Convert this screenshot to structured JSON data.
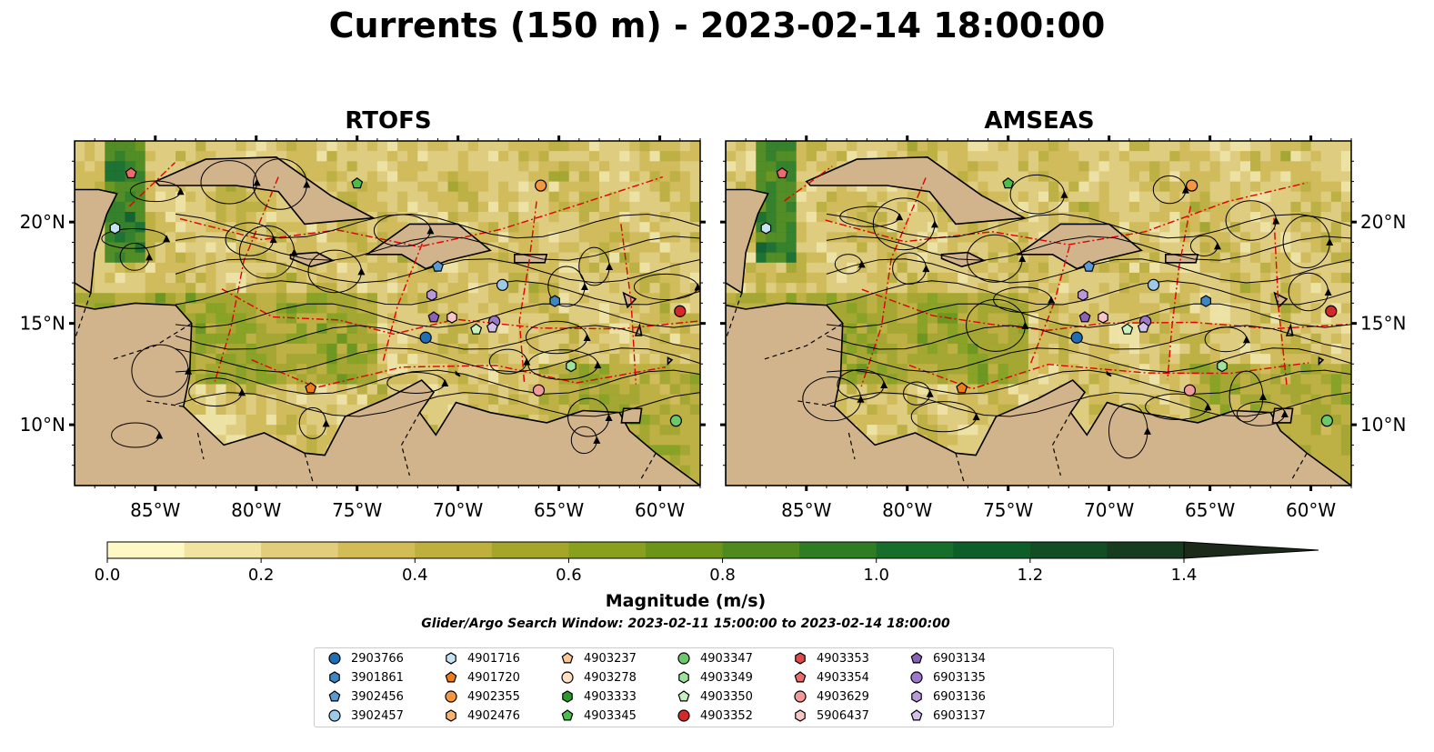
{
  "title": "Currents (150 m) - 2023-02-14 18:00:00",
  "panels": [
    {
      "title": "RTOFS"
    },
    {
      "title": "AMSEAS"
    }
  ],
  "map": {
    "lon_range": [
      -89,
      -58
    ],
    "lat_range": [
      7,
      24
    ],
    "x_ticks": [
      "85°W",
      "80°W",
      "75°W",
      "70°W",
      "65°W",
      "60°W"
    ],
    "y_ticks": [
      "20°N",
      "15°N",
      "10°N"
    ],
    "colors": {
      "ocean": "#98b9e3",
      "land": "#d2b48c",
      "boundary": "#e00000",
      "streamline": "#000000"
    }
  },
  "colorbar": {
    "label": "Magnitude (m/s)",
    "ticks": [
      "0.0",
      "0.2",
      "0.4",
      "0.6",
      "0.8",
      "1.0",
      "1.2",
      "1.4"
    ],
    "range": [
      0,
      1.5
    ],
    "extend": "max",
    "colors": [
      "#fdf8c4",
      "#f1e4a1",
      "#e2cd7a",
      "#d3bb55",
      "#bfb03d",
      "#a5a52a",
      "#88a01d",
      "#6b9418",
      "#4e8a1d",
      "#2f7d23",
      "#176e2a",
      "#0e5e2a",
      "#124d24",
      "#173b1f",
      "#1b2a19"
    ]
  },
  "search_window": "Glider/Argo Search Window: 2023-02-11 15:00:00 to 2023-02-14 18:00:00",
  "legend": [
    {
      "id": "2903766",
      "marker": "circle",
      "color": "#1f6eb4"
    },
    {
      "id": "3901861",
      "marker": "hexagon",
      "color": "#3f86c4"
    },
    {
      "id": "3902456",
      "marker": "pentagon",
      "color": "#5a9bd6"
    },
    {
      "id": "3902457",
      "marker": "circle",
      "color": "#9ecae9"
    },
    {
      "id": "4901716",
      "marker": "hexagon",
      "color": "#c6e2f5"
    },
    {
      "id": "4901720",
      "marker": "pentagon",
      "color": "#f07d1a"
    },
    {
      "id": "4902355",
      "marker": "circle",
      "color": "#f59640"
    },
    {
      "id": "4902476",
      "marker": "hexagon",
      "color": "#fbb36e"
    },
    {
      "id": "4903237",
      "marker": "pentagon",
      "color": "#fcc796"
    },
    {
      "id": "4903278",
      "marker": "circle",
      "color": "#fde0c4"
    },
    {
      "id": "4903333",
      "marker": "hexagon",
      "color": "#2a9a2a"
    },
    {
      "id": "4903345",
      "marker": "pentagon",
      "color": "#4cbd4c"
    },
    {
      "id": "4903347",
      "marker": "circle",
      "color": "#6cc86c"
    },
    {
      "id": "4903349",
      "marker": "hexagon",
      "color": "#9ee29e"
    },
    {
      "id": "4903350",
      "marker": "pentagon",
      "color": "#c7f2c0"
    },
    {
      "id": "4903352",
      "marker": "circle",
      "color": "#d22a2a"
    },
    {
      "id": "4903353",
      "marker": "hexagon",
      "color": "#e04a4a"
    },
    {
      "id": "4903354",
      "marker": "pentagon",
      "color": "#ec6b6b"
    },
    {
      "id": "4903629",
      "marker": "circle",
      "color": "#f29a9a"
    },
    {
      "id": "5906437",
      "marker": "hexagon",
      "color": "#f8c6c6"
    },
    {
      "id": "6903134",
      "marker": "pentagon",
      "color": "#8a63b8"
    },
    {
      "id": "6903135",
      "marker": "circle",
      "color": "#9e79cb"
    },
    {
      "id": "6903136",
      "marker": "hexagon",
      "color": "#b69ad9"
    },
    {
      "id": "6903137",
      "marker": "pentagon",
      "color": "#d3c1ea"
    }
  ],
  "floats": [
    {
      "id": "4901716",
      "lon": -87.0,
      "lat": 19.7
    },
    {
      "id": "4903354",
      "lon": -86.2,
      "lat": 22.4
    },
    {
      "id": "4903345",
      "lon": -75.0,
      "lat": 21.9
    },
    {
      "id": "4902355",
      "lon": -65.9,
      "lat": 21.8
    },
    {
      "id": "3902456",
      "lon": -71.0,
      "lat": 17.8
    },
    {
      "id": "6903136",
      "lon": -71.3,
      "lat": 16.4
    },
    {
      "id": "3902457",
      "lon": -67.8,
      "lat": 16.9
    },
    {
      "id": "3901861",
      "lon": -65.2,
      "lat": 16.1
    },
    {
      "id": "6903134",
      "lon": -71.2,
      "lat": 15.3
    },
    {
      "id": "5906437",
      "lon": -70.3,
      "lat": 15.3
    },
    {
      "id": "6903135",
      "lon": -68.2,
      "lat": 15.1
    },
    {
      "id": "6903137",
      "lon": -68.3,
      "lat": 14.8
    },
    {
      "id": "4903350",
      "lon": -69.1,
      "lat": 14.7
    },
    {
      "id": "2903766",
      "lon": -71.6,
      "lat": 14.3
    },
    {
      "id": "4903349",
      "lon": -64.4,
      "lat": 12.9
    },
    {
      "id": "4903629",
      "lon": -66.0,
      "lat": 11.7
    },
    {
      "id": "4901720",
      "lon": -77.3,
      "lat": 11.8
    },
    {
      "id": "4903352",
      "lon": -59.0,
      "lat": 15.6
    },
    {
      "id": "4903347",
      "lon": -59.2,
      "lat": 10.2
    }
  ]
}
